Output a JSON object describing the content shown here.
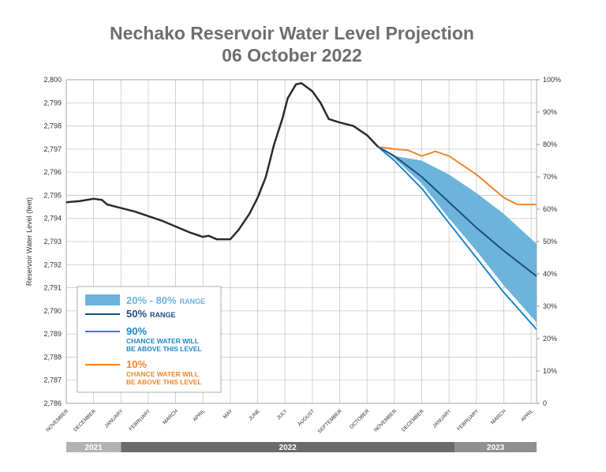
{
  "chart_data": {
    "type": "line",
    "title": "Nechako Reservoir Water Level Projection",
    "subtitle": "06 October 2022",
    "y_label": "Reservoir Water Level (feet)",
    "xlim": [
      0,
      17.2
    ],
    "xticks": [
      {
        "value": 0,
        "label": "NOVEMBER"
      },
      {
        "value": 1,
        "label": "DECEMBER"
      },
      {
        "value": 2,
        "label": "JANUARY"
      },
      {
        "value": 3,
        "label": "FEBRUARY"
      },
      {
        "value": 4,
        "label": "MARCH"
      },
      {
        "value": 5,
        "label": "APRIL"
      },
      {
        "value": 6,
        "label": "MAY"
      },
      {
        "value": 7,
        "label": "JUNE"
      },
      {
        "value": 8,
        "label": "JULY"
      },
      {
        "value": 9,
        "label": "AUGUST"
      },
      {
        "value": 10,
        "label": "SEPTEMBER"
      },
      {
        "value": 11,
        "label": "OCTOBER"
      },
      {
        "value": 12,
        "label": "NOVEMBER"
      },
      {
        "value": 13,
        "label": "DECEMBER"
      },
      {
        "value": 14,
        "label": "JANUARY"
      },
      {
        "value": 15,
        "label": "FEBRUARY"
      },
      {
        "value": 16,
        "label": "MARCH"
      },
      {
        "value": 17,
        "label": "APRIL"
      }
    ],
    "year_bands": [
      {
        "label": "2021",
        "start": 0,
        "end": 2,
        "color": "#b3b3b3"
      },
      {
        "label": "2022",
        "start": 2,
        "end": 14.2,
        "color": "#6a6a6a"
      },
      {
        "label": "2023",
        "start": 14.2,
        "end": 17.2,
        "color": "#8f8f8f"
      }
    ],
    "ylim": [
      2786,
      2800
    ],
    "yticks": [
      {
        "value": 2786,
        "label": "2,786"
      },
      {
        "value": 2787,
        "label": "2,787"
      },
      {
        "value": 2788,
        "label": "2,788"
      },
      {
        "value": 2789,
        "label": "2,789"
      },
      {
        "value": 2790,
        "label": "2,790"
      },
      {
        "value": 2791,
        "label": "2,791"
      },
      {
        "value": 2792,
        "label": "2,792"
      },
      {
        "value": 2793,
        "label": "2,793"
      },
      {
        "value": 2794,
        "label": "2,794"
      },
      {
        "value": 2795,
        "label": "2,795"
      },
      {
        "value": 2796,
        "label": "2,796"
      },
      {
        "value": 2797,
        "label": "2,797"
      },
      {
        "value": 2798,
        "label": "2,798"
      },
      {
        "value": 2799,
        "label": "2,799"
      },
      {
        "value": 2800,
        "label": "2,800"
      }
    ],
    "y2lim": [
      0,
      100
    ],
    "y2ticks": [
      {
        "value": 0,
        "label": "0"
      },
      {
        "value": 10,
        "label": "10%"
      },
      {
        "value": 20,
        "label": "20%"
      },
      {
        "value": 30,
        "label": "30%"
      },
      {
        "value": 40,
        "label": "40%"
      },
      {
        "value": 50,
        "label": "50%"
      },
      {
        "value": 60,
        "label": "60%"
      },
      {
        "value": 70,
        "label": "70%"
      },
      {
        "value": 80,
        "label": "80%"
      },
      {
        "value": 90,
        "label": "90%"
      },
      {
        "value": 100,
        "label": "100%"
      }
    ],
    "grid": true,
    "history": {
      "color": "#2b2b2b",
      "x": [
        0,
        0.5,
        1,
        1.3,
        1.5,
        2,
        2.5,
        3,
        3.5,
        4,
        4.5,
        5,
        5.2,
        5.5,
        6,
        6.3,
        6.7,
        7,
        7.3,
        7.6,
        7.9,
        8.1,
        8.4,
        8.6,
        9,
        9.3,
        9.6,
        10,
        10.5,
        11,
        11.4
      ],
      "values": [
        2794.7,
        2794.75,
        2794.85,
        2794.8,
        2794.6,
        2794.45,
        2794.3,
        2794.1,
        2793.9,
        2793.65,
        2793.4,
        2793.2,
        2793.25,
        2793.1,
        2793.1,
        2793.5,
        2794.2,
        2794.9,
        2795.8,
        2797.2,
        2798.3,
        2799.2,
        2799.8,
        2799.85,
        2799.5,
        2799.0,
        2798.3,
        2798.15,
        2798.0,
        2797.6,
        2797.1
      ]
    },
    "band": {
      "name": "20% - 80%",
      "suffix": "RANGE",
      "color": "#6cb4dc",
      "x": [
        11.4,
        12,
        13,
        14,
        15,
        16,
        17.2
      ],
      "lower": [
        2797.1,
        2796.6,
        2795.5,
        2794.0,
        2792.6,
        2791.1,
        2789.5
      ],
      "upper": [
        2797.1,
        2796.7,
        2796.5,
        2795.9,
        2795.1,
        2794.2,
        2792.9
      ]
    },
    "series": [
      {
        "name": "50%",
        "suffix": "RANGE",
        "color": "#1e4f7c",
        "x": [
          11.4,
          12,
          13,
          14,
          15,
          16,
          17.2
        ],
        "values": [
          2797.1,
          2796.7,
          2795.8,
          2794.7,
          2793.6,
          2792.6,
          2791.5
        ]
      },
      {
        "name": "90%",
        "suffix": "CHANCE WATER WILL BE ABOVE THIS LEVEL",
        "color": "#1b87c9",
        "x": [
          11.4,
          12,
          13,
          14,
          15,
          16,
          17.2
        ],
        "values": [
          2797.1,
          2796.5,
          2795.3,
          2793.8,
          2792.3,
          2790.8,
          2789.2
        ]
      },
      {
        "name": "10%",
        "suffix": "CHANCE WATER WILL BE ABOVE THIS LEVEL",
        "color": "#f0862b",
        "x": [
          11.4,
          12,
          12.5,
          13,
          13.5,
          14,
          15,
          16,
          16.5,
          17.2
        ],
        "values": [
          2797.1,
          2797.0,
          2796.95,
          2796.7,
          2796.9,
          2796.7,
          2795.9,
          2794.9,
          2794.6,
          2794.6
        ]
      }
    ]
  }
}
